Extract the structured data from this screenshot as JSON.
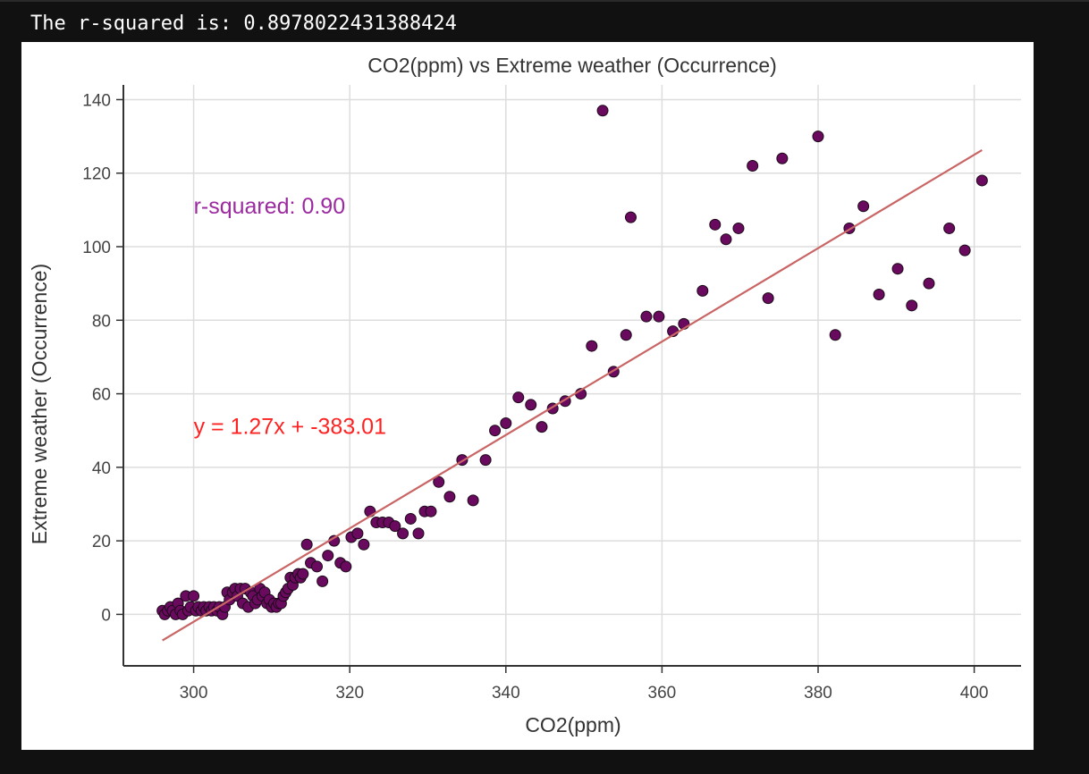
{
  "output": {
    "text": "The r-squared is: 0.8978022431388424"
  },
  "chart_data": {
    "type": "scatter",
    "title": "CO2(ppm) vs Extreme weather (Occurrence)",
    "xlabel": "CO2(ppm)",
    "ylabel": "Extreme weather (Occurrence)",
    "xlim": [
      291,
      406
    ],
    "ylim": [
      -14,
      144
    ],
    "xticks": [
      300,
      320,
      340,
      360,
      380,
      400
    ],
    "yticks": [
      0,
      20,
      40,
      60,
      80,
      100,
      120,
      140
    ],
    "grid": true,
    "annotations": [
      {
        "text": "r-squared: 0.90",
        "x": 300,
        "y": 111,
        "color": "#9b2aa0"
      },
      {
        "text": "y = 1.27x + -383.01",
        "x": 300,
        "y": 51,
        "color": "#ff2222"
      }
    ],
    "regression": {
      "slope": 1.27,
      "intercept": -383.01,
      "x_range": [
        296,
        401
      ],
      "color": "#c96565"
    },
    "marker_color": "#6a0a5e",
    "points": {
      "x": [
        296.0,
        296.3,
        296.7,
        297.0,
        297.3,
        297.7,
        298.0,
        298.3,
        298.6,
        299.0,
        299.3,
        299.6,
        300.0,
        300.3,
        300.6,
        301.0,
        301.3,
        301.6,
        302.0,
        302.3,
        302.6,
        303.0,
        303.3,
        303.7,
        304.0,
        304.3,
        304.6,
        305.0,
        305.3,
        305.6,
        306.0,
        306.3,
        306.6,
        307.0,
        307.3,
        307.6,
        307.9,
        308.2,
        308.5,
        308.8,
        309.1,
        309.4,
        309.7,
        310.0,
        310.3,
        310.6,
        310.9,
        311.2,
        311.5,
        311.8,
        312.1,
        312.4,
        312.7,
        313.0,
        313.4,
        313.7,
        314.0,
        314.5,
        315.0,
        315.8,
        316.5,
        317.2,
        318.0,
        318.8,
        319.5,
        320.2,
        321.0,
        321.8,
        322.6,
        323.4,
        324.2,
        325.0,
        325.8,
        326.8,
        327.8,
        328.8,
        329.6,
        330.4,
        331.4,
        332.8,
        334.4,
        335.8,
        337.4,
        338.6,
        340.0,
        341.6,
        343.2,
        344.6,
        346.0,
        347.6,
        349.6,
        351.0,
        352.4,
        353.8,
        355.4,
        356.0,
        358.0,
        359.6,
        361.4,
        362.8,
        365.2,
        366.8,
        368.2,
        369.8,
        371.6,
        373.6,
        375.4,
        380.0,
        382.2,
        384.0,
        385.8,
        387.8,
        390.2,
        392.0,
        394.2,
        396.8,
        398.8,
        401.0
      ],
      "y": [
        1,
        0,
        1,
        2,
        1,
        0,
        3,
        1,
        0,
        5,
        1,
        2,
        5,
        1,
        2,
        1,
        2,
        1,
        2,
        1,
        2,
        1,
        2,
        0,
        2,
        6,
        4,
        6,
        7,
        5,
        7,
        3,
        7,
        2,
        6,
        5,
        3,
        4,
        7,
        5,
        6,
        3,
        4,
        2,
        3,
        2,
        3,
        3,
        5,
        6,
        7,
        10,
        8,
        10,
        11,
        10,
        11,
        19,
        14,
        13,
        9,
        16,
        20,
        14,
        13,
        21,
        22,
        19,
        28,
        25,
        25,
        25,
        24,
        22,
        26,
        22,
        28,
        28,
        36,
        32,
        42,
        31,
        42,
        50,
        52,
        59,
        57,
        51,
        56,
        58,
        60,
        73,
        137,
        66,
        76,
        108,
        81,
        81,
        77,
        79,
        88,
        106,
        102,
        105,
        122,
        86,
        124,
        130,
        76,
        105,
        111,
        87,
        94,
        84,
        90,
        105,
        99,
        118
      ]
    }
  }
}
